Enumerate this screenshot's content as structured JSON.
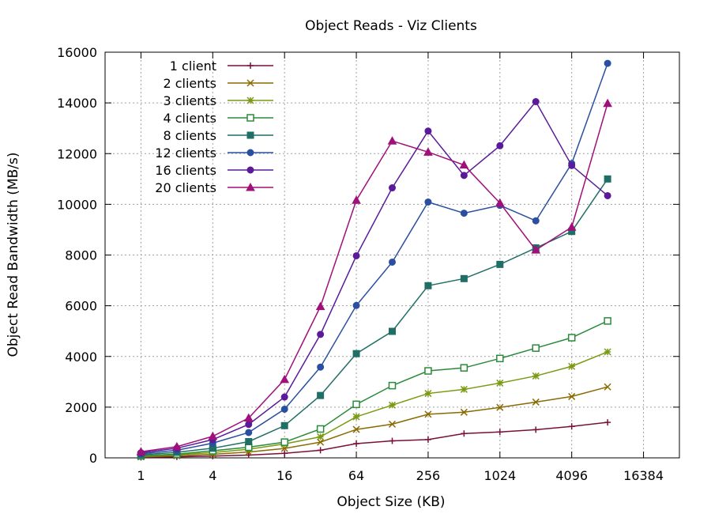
{
  "chart_data": {
    "type": "line",
    "title": "Object Reads - Viz Clients",
    "xlabel": "Object Size (KB)",
    "ylabel": "Object Read Bandwidth (MB/s)",
    "x_scale": "log2",
    "xlim": [
      0.5,
      32768
    ],
    "ylim": [
      0,
      16000
    ],
    "x_ticks": [
      1,
      4,
      16,
      64,
      256,
      1024,
      4096,
      16384
    ],
    "y_ticks": [
      0,
      2000,
      4000,
      6000,
      8000,
      10000,
      12000,
      14000,
      16000
    ],
    "grid": true,
    "legend_position": "top-left",
    "x": [
      1,
      2,
      4,
      8,
      16,
      32,
      64,
      128,
      256,
      512,
      1024,
      2048,
      4096,
      8192
    ],
    "series": [
      {
        "name": "1 client",
        "color": "#7b0f3a",
        "marker": "plus",
        "values": [
          20,
          40,
          70,
          110,
          180,
          300,
          560,
          670,
          720,
          960,
          1020,
          1110,
          1240,
          1400
        ]
      },
      {
        "name": "2 clients",
        "color": "#8a6a00",
        "marker": "cross",
        "values": [
          40,
          80,
          140,
          230,
          370,
          620,
          1120,
          1330,
          1720,
          1800,
          1990,
          2200,
          2420,
          2800
        ]
      },
      {
        "name": "3 clients",
        "color": "#7a9a14",
        "marker": "star",
        "values": [
          60,
          120,
          210,
          340,
          550,
          830,
          1620,
          2080,
          2540,
          2700,
          2950,
          3230,
          3610,
          4180
        ]
      },
      {
        "name": "4 clients",
        "color": "#2a8a3a",
        "marker": "box-open",
        "values": [
          80,
          150,
          280,
          420,
          620,
          1140,
          2110,
          2850,
          3430,
          3550,
          3920,
          4330,
          4740,
          5400
        ]
      },
      {
        "name": "8 clients",
        "color": "#1f6f66",
        "marker": "box-filled",
        "values": [
          120,
          220,
          380,
          640,
          1270,
          2460,
          4110,
          4990,
          6790,
          7070,
          7630,
          8280,
          8930,
          11000
        ]
      },
      {
        "name": "12 clients",
        "color": "#2a4fa0",
        "marker": "circle-filled",
        "values": [
          160,
          300,
          580,
          1000,
          1920,
          3580,
          6010,
          7720,
          10090,
          9650,
          9960,
          9350,
          11610,
          15560
        ]
      },
      {
        "name": "16 clients",
        "color": "#5a1a9a",
        "marker": "circle-filled",
        "values": [
          200,
          380,
          720,
          1320,
          2400,
          4870,
          7970,
          10650,
          12890,
          11140,
          12310,
          14050,
          11530,
          10340
        ]
      },
      {
        "name": "20 clients",
        "color": "#a0107a",
        "marker": "triangle-filled",
        "values": [
          240,
          440,
          850,
          1570,
          3090,
          5970,
          10160,
          12500,
          12060,
          11550,
          10050,
          8200,
          9100,
          13980
        ]
      }
    ]
  }
}
